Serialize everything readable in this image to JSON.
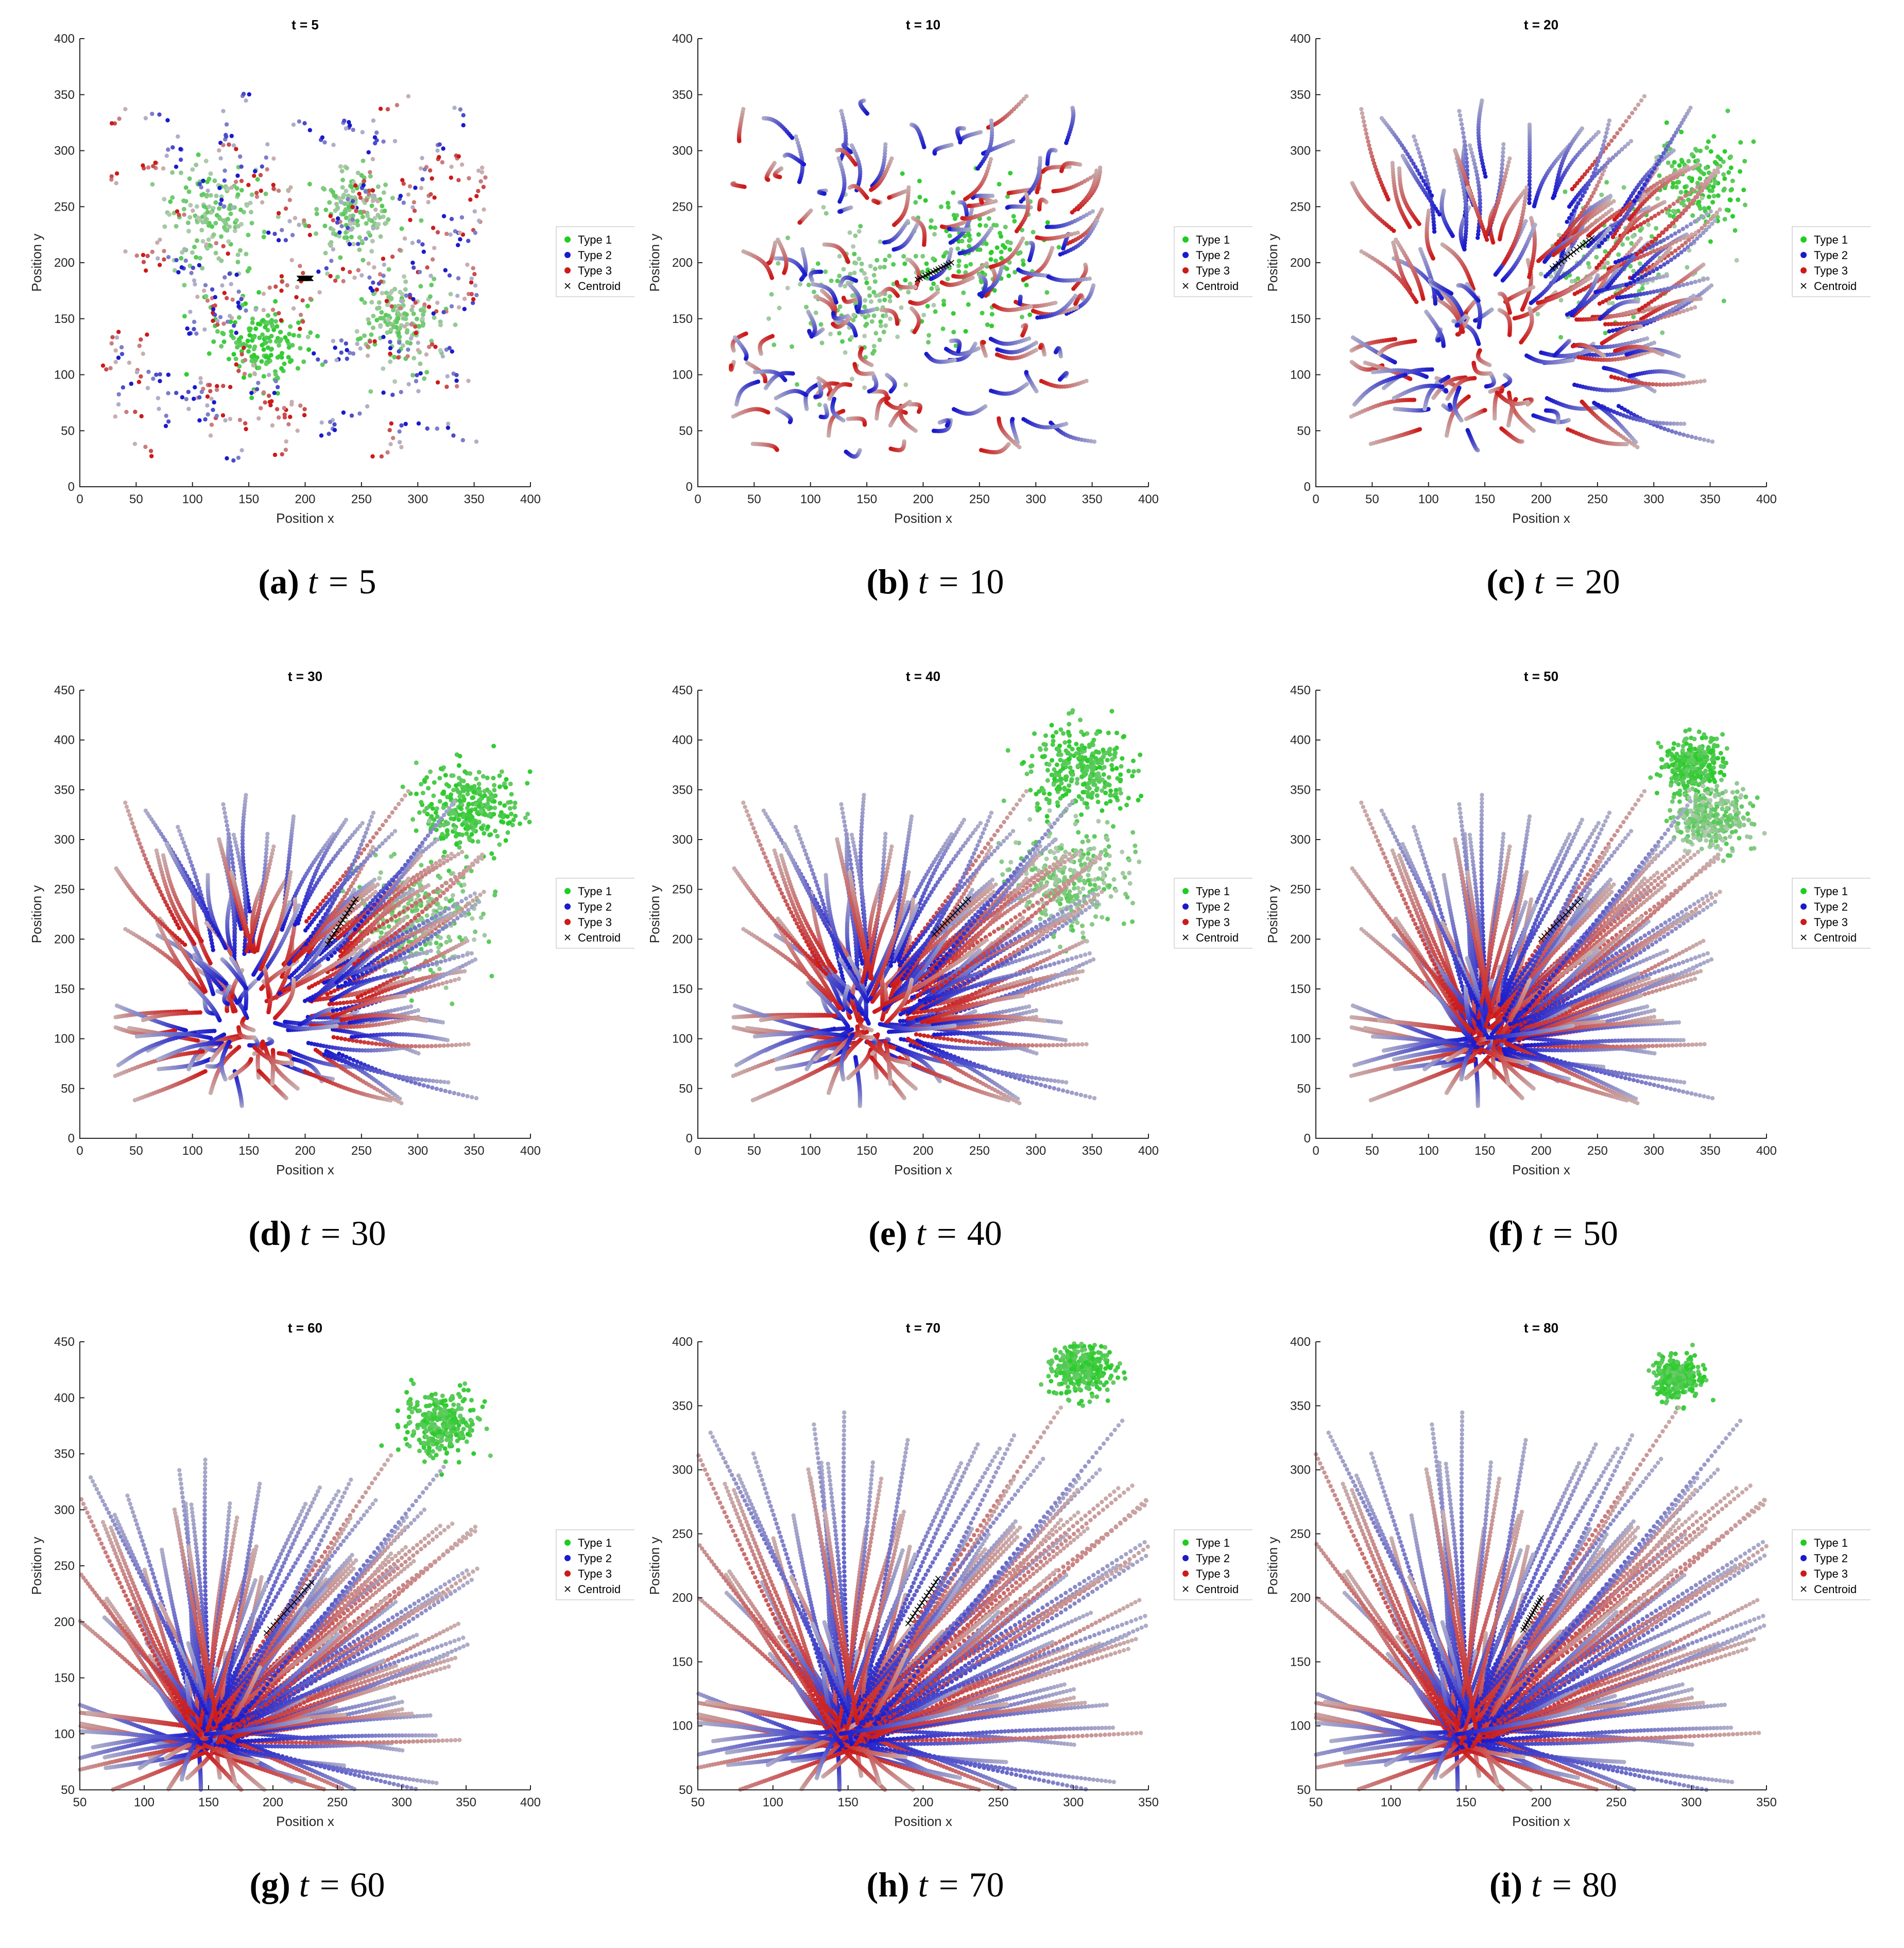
{
  "figure": {
    "colors": {
      "type1": "#1fcc1f",
      "type2": "#1a1acc",
      "type3": "#cc1a1a",
      "fade": "#c8c8c8",
      "centroid": "#000000",
      "axis": "#262626"
    },
    "legend": [
      "Type 1",
      "Type 2",
      "Type 3",
      "Centroid"
    ],
    "xlabel": "Position x",
    "ylabel": "Position y",
    "caption_var": "t ="
  },
  "chart_data": [
    {
      "type": "scatter",
      "letter": "(a)",
      "title": "t = 5",
      "t": 5,
      "xlim": [
        0,
        400
      ],
      "ylim": [
        0,
        400
      ],
      "xticks": [
        0,
        50,
        100,
        150,
        200,
        250,
        300,
        350,
        400
      ],
      "yticks": [
        0,
        50,
        100,
        150,
        200,
        250,
        300,
        350,
        400
      ],
      "xlabel": "Position x",
      "ylabel": "Position y",
      "legend_pos": "right",
      "stage": 0,
      "green_clusters": [
        {
          "x": 160,
          "y": 130,
          "r": 35
        },
        {
          "x": 240,
          "y": 245,
          "r": 35
        },
        {
          "x": 280,
          "y": 150,
          "r": 35
        },
        {
          "x": 120,
          "y": 240,
          "r": 45
        }
      ],
      "centroid": {
        "x": [
          195,
          205
        ],
        "y": [
          186,
          186
        ]
      }
    },
    {
      "type": "scatter",
      "letter": "(b)",
      "title": "t = 10",
      "t": 10,
      "xlim": [
        0,
        400
      ],
      "ylim": [
        0,
        400
      ],
      "xticks": [
        0,
        50,
        100,
        150,
        200,
        250,
        300,
        350,
        400
      ],
      "yticks": [
        0,
        50,
        100,
        150,
        200,
        250,
        300,
        350,
        400
      ],
      "xlabel": "Position x",
      "ylabel": "Position y",
      "legend_pos": "right",
      "stage": 1,
      "green_clusters": [
        {
          "x": 245,
          "y": 205,
          "r": 55
        },
        {
          "x": 150,
          "y": 170,
          "r": 60
        }
      ],
      "centroid": {
        "x": [
          195,
          225
        ],
        "y": [
          185,
          200
        ]
      }
    },
    {
      "type": "scatter",
      "letter": "(c)",
      "title": "t = 20",
      "t": 20,
      "xlim": [
        0,
        400
      ],
      "ylim": [
        0,
        400
      ],
      "xticks": [
        0,
        50,
        100,
        150,
        200,
        250,
        300,
        350,
        400
      ],
      "yticks": [
        0,
        50,
        100,
        150,
        200,
        250,
        300,
        350,
        400
      ],
      "xlabel": "Position x",
      "ylabel": "Position y",
      "legend_pos": "right",
      "stage": 2,
      "green_clusters": [
        {
          "x": 340,
          "y": 270,
          "r": 35
        },
        {
          "x": 270,
          "y": 200,
          "r": 60
        }
      ],
      "centroid": {
        "x": [
          210,
          245
        ],
        "y": [
          195,
          222
        ]
      }
    },
    {
      "type": "scatter",
      "letter": "(d)",
      "title": "t = 30",
      "t": 30,
      "xlim": [
        0,
        400
      ],
      "ylim": [
        0,
        450
      ],
      "xticks": [
        0,
        50,
        100,
        150,
        200,
        250,
        300,
        350,
        400
      ],
      "yticks": [
        0,
        50,
        100,
        150,
        200,
        250,
        300,
        350,
        400,
        450
      ],
      "xlabel": "Position x",
      "ylabel": "Position y",
      "legend_pos": "right",
      "stage": 3,
      "green_clusters": [
        {
          "x": 345,
          "y": 330,
          "r": 40
        },
        {
          "x": 300,
          "y": 220,
          "r": 50
        }
      ],
      "centroid": {
        "x": [
          220,
          245
        ],
        "y": [
          195,
          240
        ]
      }
    },
    {
      "type": "scatter",
      "letter": "(e)",
      "title": "t = 40",
      "t": 40,
      "xlim": [
        0,
        400
      ],
      "ylim": [
        0,
        450
      ],
      "xticks": [
        0,
        50,
        100,
        150,
        200,
        250,
        300,
        350,
        400
      ],
      "yticks": [
        0,
        50,
        100,
        150,
        200,
        250,
        300,
        350,
        400,
        450
      ],
      "xlabel": "Position x",
      "ylabel": "Position y",
      "legend_pos": "right",
      "stage": 4,
      "green_clusters": [
        {
          "x": 340,
          "y": 370,
          "r": 40
        },
        {
          "x": 330,
          "y": 260,
          "r": 45
        }
      ],
      "centroid": {
        "x": [
          210,
          240
        ],
        "y": [
          205,
          240
        ]
      }
    },
    {
      "type": "scatter",
      "letter": "(f)",
      "title": "t = 50",
      "t": 50,
      "xlim": [
        0,
        400
      ],
      "ylim": [
        0,
        450
      ],
      "xticks": [
        0,
        50,
        100,
        150,
        200,
        250,
        300,
        350,
        400
      ],
      "yticks": [
        0,
        50,
        100,
        150,
        200,
        250,
        300,
        350,
        400,
        450
      ],
      "xlabel": "Position x",
      "ylabel": "Position y",
      "legend_pos": "right",
      "stage": 5,
      "green_clusters": [
        {
          "x": 335,
          "y": 375,
          "r": 25
        },
        {
          "x": 350,
          "y": 320,
          "r": 30
        }
      ],
      "centroid": {
        "x": [
          200,
          235
        ],
        "y": [
          200,
          240
        ]
      }
    },
    {
      "type": "scatter",
      "letter": "(g)",
      "title": "t = 60",
      "t": 60,
      "xlim": [
        50,
        400
      ],
      "ylim": [
        50,
        450
      ],
      "xticks": [
        50,
        100,
        150,
        200,
        250,
        300,
        350,
        400
      ],
      "yticks": [
        50,
        100,
        150,
        200,
        250,
        300,
        350,
        400,
        450
      ],
      "xlabel": "Position x",
      "ylabel": "Position y",
      "legend_pos": "right",
      "stage": 6,
      "green_clusters": [
        {
          "x": 330,
          "y": 378,
          "r": 25
        }
      ],
      "centroid": {
        "x": [
          195,
          230
        ],
        "y": [
          190,
          235
        ]
      }
    },
    {
      "type": "scatter",
      "letter": "(h)",
      "title": "t = 70",
      "t": 70,
      "xlim": [
        50,
        350
      ],
      "ylim": [
        50,
        400
      ],
      "xticks": [
        50,
        100,
        150,
        200,
        250,
        300,
        350
      ],
      "yticks": [
        50,
        100,
        150,
        200,
        250,
        300,
        350,
        400
      ],
      "xlabel": "Position x",
      "ylabel": "Position y",
      "legend_pos": "right",
      "stage": 7,
      "green_clusters": [
        {
          "x": 305,
          "y": 378,
          "r": 18
        }
      ],
      "centroid": {
        "x": [
          190,
          210
        ],
        "y": [
          180,
          215
        ]
      }
    },
    {
      "type": "scatter",
      "letter": "(i)",
      "title": "t = 80",
      "t": 80,
      "xlim": [
        50,
        350
      ],
      "ylim": [
        50,
        400
      ],
      "xticks": [
        50,
        100,
        150,
        200,
        250,
        300,
        350
      ],
      "yticks": [
        50,
        100,
        150,
        200,
        250,
        300,
        350,
        400
      ],
      "xlabel": "Position x",
      "ylabel": "Position y",
      "legend_pos": "right",
      "stage": 8,
      "green_clusters": [
        {
          "x": 290,
          "y": 372,
          "r": 14
        }
      ],
      "centroid": {
        "x": [
          188,
          200
        ],
        "y": [
          175,
          200
        ]
      }
    }
  ]
}
